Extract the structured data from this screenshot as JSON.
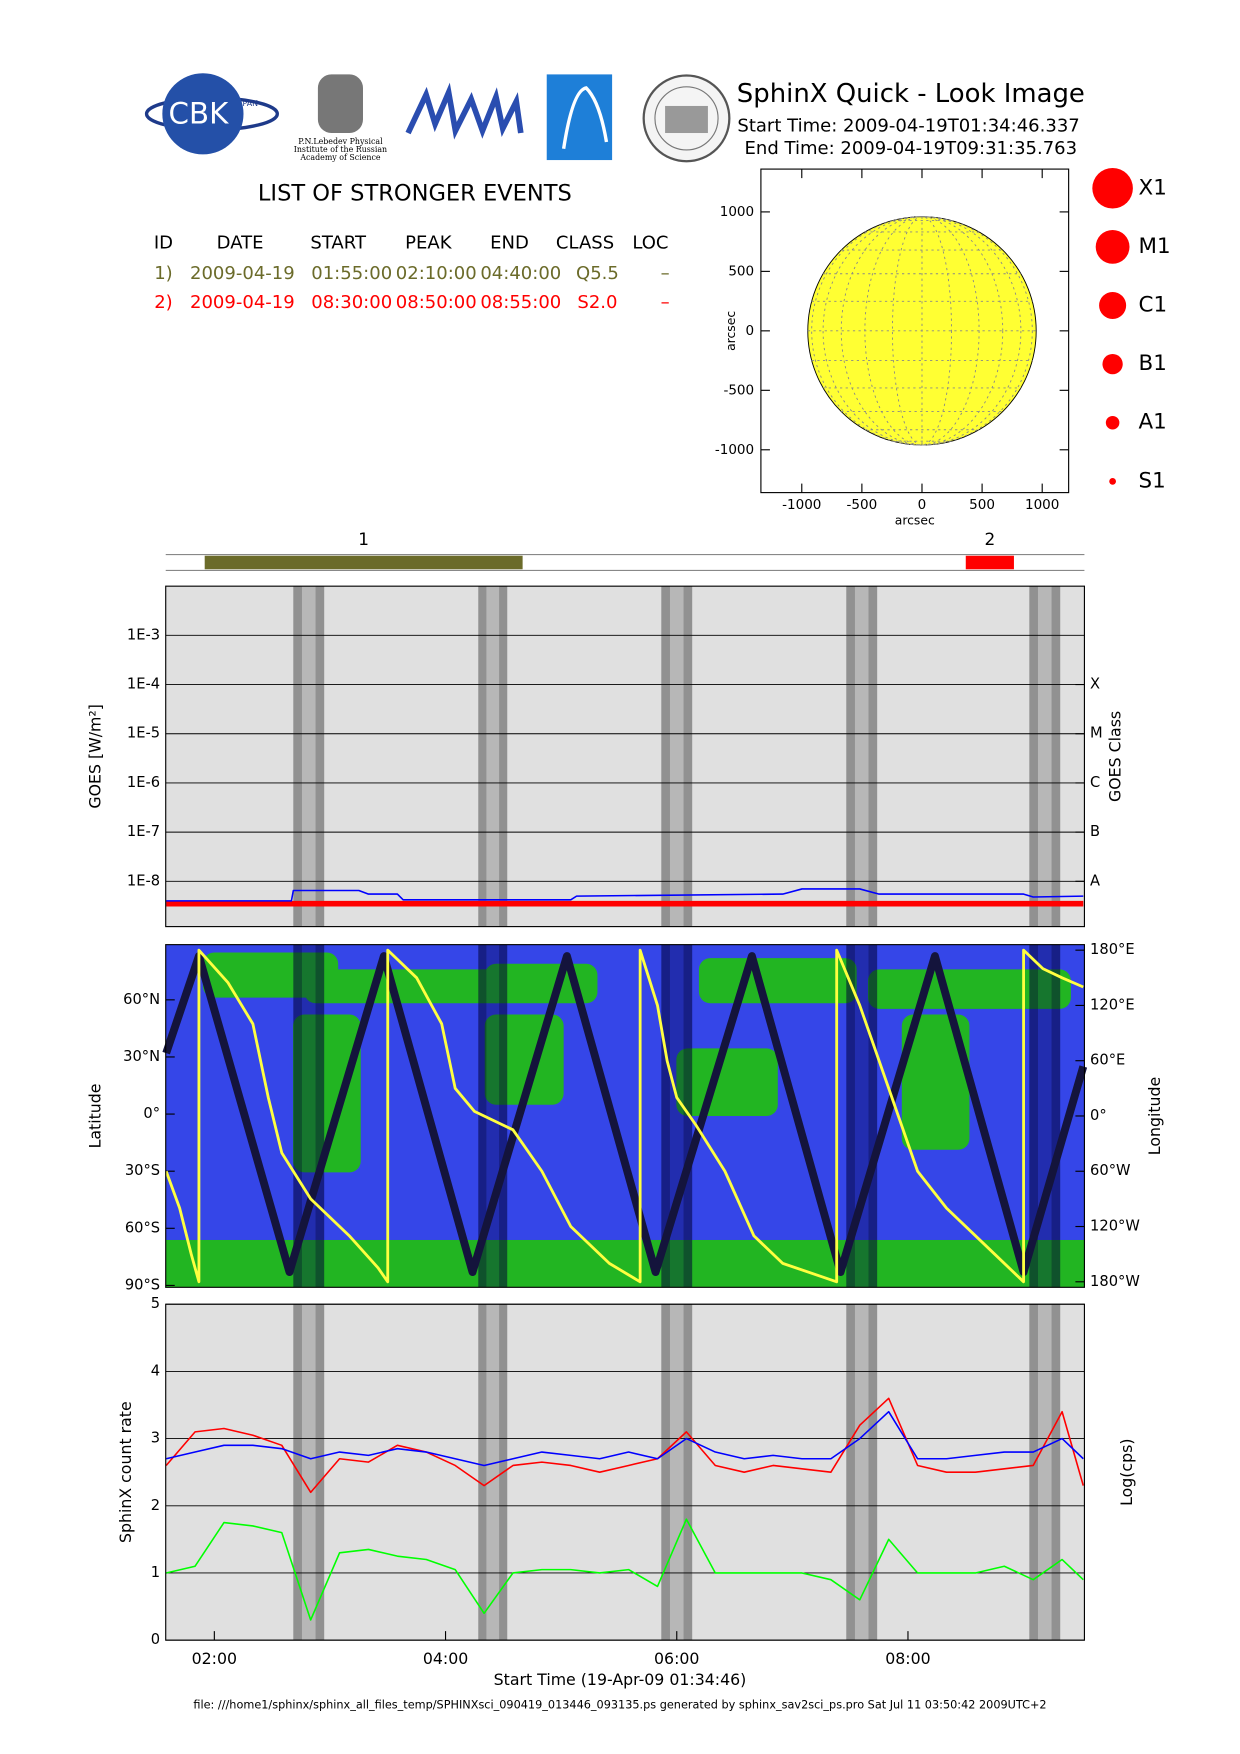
{
  "header": {
    "title": "SphinX Quick - Look Image",
    "start_time": "Start Time: 2009-04-19T01:34:46.337",
    "end_time": "End Time: 2009-04-19T09:31:35.763",
    "logo_cbk": "CBK",
    "logo_pan": "PAN",
    "logo_lebedev": [
      "P.N.Lebedev Physical",
      "Institute of the Russian",
      "Academy of Science"
    ]
  },
  "events": {
    "title": "LIST OF STRONGER EVENTS",
    "columns": [
      "ID",
      "DATE",
      "START",
      "PEAK",
      "END",
      "CLASS",
      "LOC"
    ],
    "rows": [
      [
        "1)",
        "2009-04-19",
        "01:55:00",
        "02:10:00",
        "04:40:00",
        "Q5.5",
        "–"
      ],
      [
        "2)",
        "2009-04-19",
        "08:30:00",
        "08:50:00",
        "08:55:00",
        "S2.0",
        "–"
      ]
    ],
    "colors": [
      "#6b6b2a",
      "#ff0000"
    ]
  },
  "shading": [
    [
      "02:41",
      "02:57"
    ],
    [
      "04:17",
      "04:32"
    ],
    [
      "05:52",
      "06:08"
    ],
    [
      "07:28",
      "07:44"
    ],
    [
      "09:03",
      "09:19"
    ]
  ],
  "footer": "file: ///home1/sphinx/sphinx_all_files_temp/SPHINXsci_090419_013446_093135.ps generated by sphinx_sav2sci_ps.pro Sat Jul 11 03:50:42 2009UTC+2",
  "chart_data": [
    {
      "type": "solar_disk",
      "xlabel": "arcsec",
      "ylabel": "arcsec",
      "xlim": [
        -1340,
        1220
      ],
      "ylim": [
        -1360,
        1360
      ],
      "xticks": [
        -1000,
        -500,
        0,
        500,
        1000
      ],
      "yticks": [
        -1000,
        -500,
        0,
        500,
        1000
      ],
      "sun_radius": 950,
      "color": "#ffff33",
      "legend": [
        "X1",
        "M1",
        "C1",
        "B1",
        "A1",
        "S1"
      ],
      "legend_color": "#ff0000"
    },
    {
      "type": "timeline",
      "labels": [
        "1",
        "2"
      ],
      "xlim": [
        "01:34:46",
        "09:31:35"
      ]
    },
    {
      "type": "line",
      "log_y": true,
      "ylabel": "GOES [W/m²]",
      "y2label": "GOES Class",
      "xlim": [
        "01:34:46",
        "09:31:35"
      ],
      "ylim": [
        1.2e-09,
        0.01
      ],
      "yticks": [
        {
          "value": 1e-08,
          "label": "1E-8"
        },
        {
          "value": 1e-07,
          "label": "1E-7"
        },
        {
          "value": 1e-06,
          "label": "1E-6"
        },
        {
          "value": 1e-05,
          "label": "1E-5"
        },
        {
          "value": 0.0001,
          "label": "1E-4"
        },
        {
          "value": 0.001,
          "label": "1E-3"
        }
      ],
      "y2ticks": [
        {
          "value": 1e-08,
          "label": "A"
        },
        {
          "value": 1e-07,
          "label": "B"
        },
        {
          "value": 1e-06,
          "label": "C"
        },
        {
          "value": 1e-05,
          "label": "M"
        },
        {
          "value": 0.0001,
          "label": "X"
        }
      ],
      "grid": true,
      "x": [
        "01:35",
        "02:40",
        "02:41",
        "03:15",
        "03:20",
        "03:35",
        "03:38",
        "05:05",
        "05:08",
        "06:55",
        "07:05",
        "07:35",
        "07:45",
        "09:00",
        "09:05",
        "09:31"
      ],
      "series": [
        {
          "color": "#ff0000",
          "values": [
            3.5e-09,
            3.5e-09,
            3.5e-09,
            3.5e-09,
            3.5e-09,
            3.5e-09,
            3.5e-09,
            3.5e-09,
            3.5e-09,
            3.5e-09,
            3.5e-09,
            3.5e-09,
            3.5e-09,
            3.5e-09,
            3.5e-09,
            3.5e-09
          ]
        },
        {
          "color": "#0000ff",
          "values": [
            4e-09,
            4e-09,
            6.5e-09,
            6.5e-09,
            5.5e-09,
            5.5e-09,
            4.2e-09,
            4.2e-09,
            5e-09,
            5.5e-09,
            7e-09,
            7e-09,
            5.5e-09,
            5.5e-09,
            4.8e-09,
            5e-09
          ]
        }
      ]
    },
    {
      "type": "orbit_map",
      "ylabel": "Latitude",
      "y2label": "Longitude",
      "xlim": [
        "01:34:46",
        "09:31:35"
      ],
      "ylim": [
        -91,
        89
      ],
      "y2lim": [
        -186,
        186
      ],
      "yticks": [
        {
          "value": 60,
          "label": "60°N"
        },
        {
          "value": 30,
          "label": "30°N"
        },
        {
          "value": 0,
          "label": "0°"
        },
        {
          "value": -30,
          "label": "30°S"
        },
        {
          "value": -60,
          "label": "60°S"
        },
        {
          "value": -90,
          "label": "90°S"
        }
      ],
      "y2ticks": [
        {
          "value": 180,
          "label": "180°E"
        },
        {
          "value": 120,
          "label": "120°E"
        },
        {
          "value": 60,
          "label": "60°E"
        },
        {
          "value": 0,
          "label": "0°"
        },
        {
          "value": -60,
          "label": "60°W"
        },
        {
          "value": -120,
          "label": "120°W"
        },
        {
          "value": -180,
          "label": "180°W"
        }
      ],
      "series": [
        {
          "color": "#14143c",
          "x": [
            "01:35",
            "01:52",
            "02:39",
            "03:28",
            "04:14",
            "05:03",
            "05:49",
            "06:39",
            "07:25",
            "08:14",
            "09:00",
            "09:31"
          ],
          "values": [
            32,
            83,
            -83,
            83,
            -83,
            83,
            -83,
            83,
            -83,
            83,
            -83,
            25
          ]
        },
        {
          "color": "#ffff40",
          "axis": "y2",
          "x": [
            "01:35",
            "01:42",
            "01:48",
            "01:52",
            "01:52",
            "02:07",
            "02:20",
            "02:28",
            "02:35",
            "02:50",
            "03:10",
            "03:25",
            "03:30",
            "03:30",
            "03:45",
            "03:58",
            "04:05",
            "04:15",
            "04:35",
            "04:50",
            "05:05",
            "05:25",
            "05:41",
            "05:41",
            "05:50",
            "05:55",
            "06:00",
            "06:10",
            "06:25",
            "06:40",
            "06:55",
            "07:23",
            "07:23",
            "07:35",
            "07:45",
            "07:55",
            "08:05",
            "08:20",
            "08:40",
            "09:00",
            "09:00",
            "09:10",
            "09:20",
            "09:31"
          ],
          "values": [
            -60,
            -100,
            -150,
            -180,
            180,
            145,
            100,
            20,
            -40,
            -90,
            -130,
            -165,
            -180,
            180,
            150,
            100,
            30,
            5,
            -15,
            -60,
            -120,
            -160,
            -180,
            180,
            120,
            60,
            20,
            -10,
            -60,
            -130,
            -160,
            -180,
            180,
            120,
            60,
            0,
            -60,
            -100,
            -140,
            -180,
            180,
            160,
            150,
            140
          ]
        }
      ]
    },
    {
      "type": "line",
      "ylabel": "SphinX count rate",
      "y2label": "Log(cps)",
      "xlabel": "Start Time (19-Apr-09 01:34:46)",
      "xlim": [
        "01:34:46",
        "09:31:35"
      ],
      "xticks": [
        "02:00",
        "04:00",
        "06:00",
        "08:00"
      ],
      "ylim": [
        0,
        5
      ],
      "yticks": [
        0,
        1,
        2,
        3,
        4,
        5
      ],
      "grid": true,
      "x": [
        "01:35",
        "01:50",
        "02:05",
        "02:20",
        "02:35",
        "02:50",
        "03:05",
        "03:20",
        "03:35",
        "03:50",
        "04:05",
        "04:20",
        "04:35",
        "04:50",
        "05:05",
        "05:20",
        "05:35",
        "05:50",
        "06:05",
        "06:20",
        "06:35",
        "06:50",
        "07:05",
        "07:20",
        "07:35",
        "07:50",
        "08:05",
        "08:20",
        "08:35",
        "08:50",
        "09:05",
        "09:20",
        "09:31"
      ],
      "series": [
        {
          "color": "#ff0000",
          "values": [
            2.6,
            3.1,
            3.15,
            3.05,
            2.9,
            2.2,
            2.7,
            2.65,
            2.9,
            2.8,
            2.6,
            2.3,
            2.6,
            2.65,
            2.6,
            2.5,
            2.6,
            2.7,
            3.1,
            2.6,
            2.5,
            2.6,
            2.55,
            2.5,
            3.2,
            3.6,
            2.6,
            2.5,
            2.5,
            2.55,
            2.6,
            3.4,
            2.3
          ]
        },
        {
          "color": "#0000ff",
          "values": [
            2.7,
            2.8,
            2.9,
            2.9,
            2.85,
            2.7,
            2.8,
            2.75,
            2.85,
            2.8,
            2.7,
            2.6,
            2.7,
            2.8,
            2.75,
            2.7,
            2.8,
            2.7,
            3.0,
            2.8,
            2.7,
            2.75,
            2.7,
            2.7,
            3.0,
            3.4,
            2.7,
            2.7,
            2.75,
            2.8,
            2.8,
            3.0,
            2.7
          ]
        },
        {
          "color": "#00ff00",
          "values": [
            1.0,
            1.1,
            1.75,
            1.7,
            1.6,
            0.3,
            1.3,
            1.35,
            1.25,
            1.2,
            1.05,
            0.4,
            1.0,
            1.05,
            1.05,
            1.0,
            1.05,
            0.8,
            1.8,
            1.0,
            1.0,
            1.0,
            1.0,
            0.9,
            0.6,
            1.5,
            1.0,
            1.0,
            1.0,
            1.1,
            0.9,
            1.2,
            0.9
          ]
        }
      ]
    }
  ]
}
